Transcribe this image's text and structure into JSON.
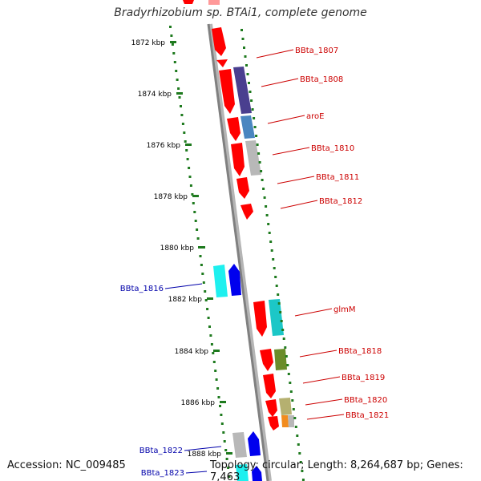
{
  "title": "Bradyrhizobium sp. BTAi1, complete genome",
  "accession_text": "Accession: NC_009485",
  "summary_text": "Topology: circular; Length: 8,264,687 bp; Genes: 7,463",
  "colors": {
    "axis": "#808080",
    "scale_ticks": "#1e7a1e",
    "forward_label": "#cc0000",
    "reverse_label": "#0000aa"
  },
  "scale_labels": [
    "1872 kbp",
    "1874 kbp",
    "1876 kbp",
    "1878 kbp",
    "1880 kbp",
    "1882 kbp",
    "1884 kbp",
    "1886 kbp",
    "1888 kbp"
  ],
  "gene_labels": {
    "forward": [
      "BBta_1807",
      "BBta_1808",
      "aroE",
      "BBta_1810",
      "BBta_1811",
      "BBta_1812",
      "glmM",
      "BBta_1818",
      "BBta_1819",
      "BBta_1820",
      "BBta_1821"
    ],
    "reverse": [
      "BBta_1816",
      "BBta_1822",
      "BBta_1823"
    ]
  }
}
